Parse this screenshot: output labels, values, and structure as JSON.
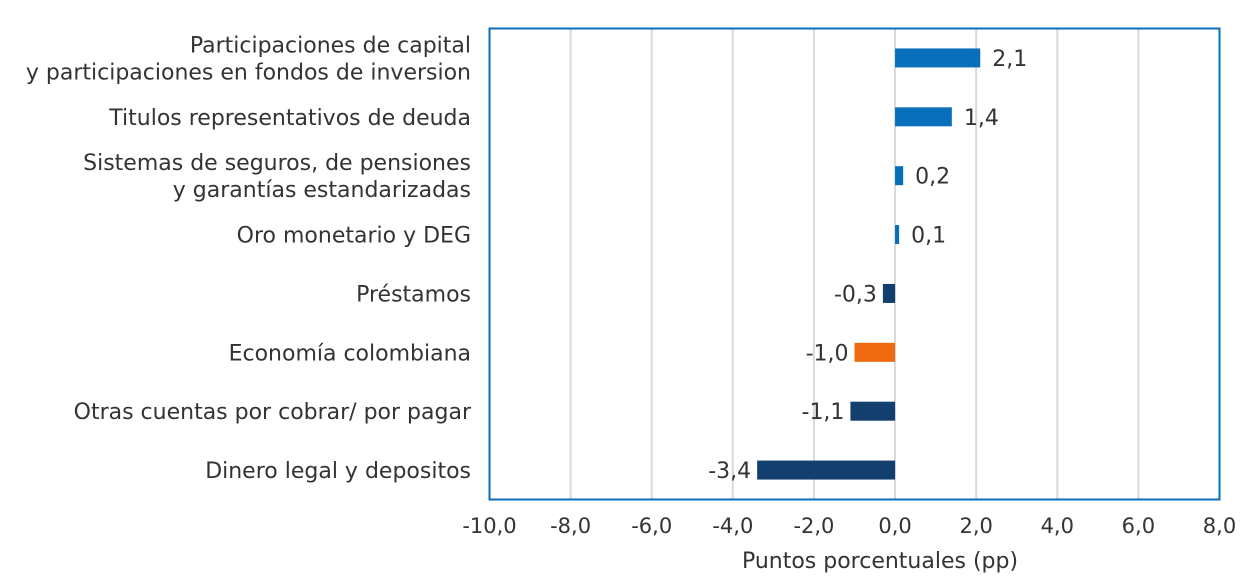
{
  "chart_data": {
    "type": "bar",
    "orientation": "horizontal",
    "categories": [
      [
        "Participaciones de capital",
        "y participaciones en fondos de inversion"
      ],
      [
        "Titulos representativos de deuda"
      ],
      [
        "Sistemas de seguros, de pensiones",
        "y garantías estandarizadas"
      ],
      [
        "Oro monetario y DEG"
      ],
      [
        "Préstamos"
      ],
      [
        "Economía colombiana"
      ],
      [
        "Otras cuentas por cobrar/ por pagar"
      ],
      [
        "Dinero legal y depositos"
      ]
    ],
    "values": [
      2.1,
      1.4,
      0.2,
      0.1,
      -0.3,
      -1.0,
      -1.1,
      -3.4
    ],
    "data_labels": [
      "2,1",
      "1,4",
      "0,2",
      "0,1",
      "-0,3",
      "-1,0",
      "-1,1",
      "-3,4"
    ],
    "bar_colors": [
      "#0a6fba",
      "#0a6fba",
      "#0a6fba",
      "#0a6fba",
      "#123f6e",
      "#ee6910",
      "#123f6e",
      "#123f6e"
    ],
    "xlim": [
      -10,
      8
    ],
    "xticks": [
      -10,
      -8,
      -6,
      -4,
      -2,
      0,
      2,
      4,
      6,
      8
    ],
    "xtick_labels": [
      "-10,0",
      "-8,0",
      "-6,0",
      "-4,0",
      "-2,0",
      "0,0",
      "2,0",
      "4,0",
      "6,0",
      "8,0"
    ],
    "xlabel": "Puntos porcentuales (pp)",
    "grid": "vertical",
    "frame_color": "#0a6fba",
    "grid_color": "#d9d9d9"
  }
}
